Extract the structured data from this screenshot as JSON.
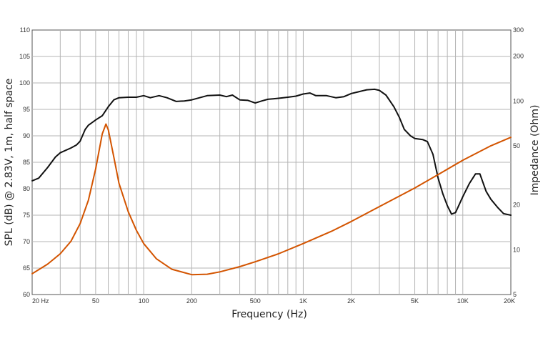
{
  "chart_data": {
    "type": "line",
    "title": "",
    "xlabel": "Frequency (Hz)",
    "ylabel": "SPL (dB) @ 2.83V, 1m, half space",
    "y2label": "Impedance (Ohm)",
    "xscale": "log",
    "xlim": [
      20,
      20000
    ],
    "ylim": [
      60,
      110
    ],
    "y2lim": [
      5,
      300
    ],
    "y2scale": "log",
    "grid": true,
    "x_ticks": [
      {
        "value": 20,
        "label": "20  Hz"
      },
      {
        "value": 50,
        "label": "50"
      },
      {
        "value": 100,
        "label": "100"
      },
      {
        "value": 200,
        "label": "200"
      },
      {
        "value": 500,
        "label": "500"
      },
      {
        "value": 1000,
        "label": "1K"
      },
      {
        "value": 2000,
        "label": "2K"
      },
      {
        "value": 5000,
        "label": "5K"
      },
      {
        "value": 10000,
        "label": "10K"
      },
      {
        "value": 20000,
        "label": "20K"
      }
    ],
    "y_ticks": [
      "110",
      "105",
      "100",
      "95",
      "90",
      "85",
      "80",
      "75",
      "70",
      "65",
      "60"
    ],
    "y2_ticks": [
      {
        "value": 300,
        "label": "300"
      },
      {
        "value": 200,
        "label": "200"
      },
      {
        "value": 100,
        "label": "100"
      },
      {
        "value": 50,
        "label": "50"
      },
      {
        "value": 20,
        "label": "20"
      },
      {
        "value": 10,
        "label": "10"
      },
      {
        "value": 5,
        "label": "5"
      }
    ],
    "series": [
      {
        "axis": "left",
        "color": "#111111",
        "points": [
          [
            20,
            81.5
          ],
          [
            22,
            82
          ],
          [
            25,
            84
          ],
          [
            28,
            86
          ],
          [
            30,
            86.8
          ],
          [
            35,
            87.7
          ],
          [
            38,
            88.3
          ],
          [
            40,
            89
          ],
          [
            43,
            91.2
          ],
          [
            45,
            92
          ],
          [
            50,
            93
          ],
          [
            55,
            93.8
          ],
          [
            60,
            95.5
          ],
          [
            65,
            96.8
          ],
          [
            70,
            97.2
          ],
          [
            80,
            97.3
          ],
          [
            90,
            97.3
          ],
          [
            100,
            97.6
          ],
          [
            110,
            97.2
          ],
          [
            125,
            97.6
          ],
          [
            140,
            97.2
          ],
          [
            160,
            96.5
          ],
          [
            180,
            96.6
          ],
          [
            200,
            96.8
          ],
          [
            250,
            97.6
          ],
          [
            300,
            97.7
          ],
          [
            330,
            97.4
          ],
          [
            360,
            97.7
          ],
          [
            400,
            96.8
          ],
          [
            450,
            96.7
          ],
          [
            500,
            96.2
          ],
          [
            550,
            96.6
          ],
          [
            600,
            96.9
          ],
          [
            700,
            97.1
          ],
          [
            800,
            97.3
          ],
          [
            900,
            97.5
          ],
          [
            1000,
            97.9
          ],
          [
            1100,
            98.1
          ],
          [
            1200,
            97.6
          ],
          [
            1400,
            97.6
          ],
          [
            1600,
            97.2
          ],
          [
            1800,
            97.4
          ],
          [
            2000,
            98.0
          ],
          [
            2200,
            98.3
          ],
          [
            2500,
            98.7
          ],
          [
            2800,
            98.8
          ],
          [
            3000,
            98.6
          ],
          [
            3300,
            97.7
          ],
          [
            3700,
            95.5
          ],
          [
            4000,
            93.5
          ],
          [
            4300,
            91.2
          ],
          [
            4700,
            90.0
          ],
          [
            5000,
            89.5
          ],
          [
            5600,
            89.3
          ],
          [
            6000,
            88.9
          ],
          [
            6500,
            86.5
          ],
          [
            7000,
            82
          ],
          [
            7500,
            79
          ],
          [
            8000,
            76.8
          ],
          [
            8500,
            75.2
          ],
          [
            9000,
            75.5
          ],
          [
            10000,
            78.5
          ],
          [
            11000,
            81
          ],
          [
            12000,
            82.8
          ],
          [
            12800,
            82.8
          ],
          [
            14000,
            79.5
          ],
          [
            15000,
            78
          ],
          [
            16500,
            76.5
          ],
          [
            18000,
            75.3
          ],
          [
            20000,
            75
          ]
        ]
      },
      {
        "axis": "right",
        "color": "#d35400",
        "points": [
          [
            20,
            6.9
          ],
          [
            25,
            8
          ],
          [
            30,
            9.4
          ],
          [
            35,
            11.4
          ],
          [
            40,
            15
          ],
          [
            45,
            21.5
          ],
          [
            50,
            35
          ],
          [
            55,
            60
          ],
          [
            58,
            70
          ],
          [
            60,
            64
          ],
          [
            65,
            42
          ],
          [
            70,
            28
          ],
          [
            80,
            18
          ],
          [
            90,
            13.5
          ],
          [
            100,
            11
          ],
          [
            120,
            8.7
          ],
          [
            150,
            7.4
          ],
          [
            200,
            6.8
          ],
          [
            250,
            6.85
          ],
          [
            300,
            7.1
          ],
          [
            400,
            7.7
          ],
          [
            500,
            8.3
          ],
          [
            700,
            9.4
          ],
          [
            1000,
            11.0
          ],
          [
            1500,
            13.3
          ],
          [
            2000,
            15.5
          ],
          [
            3000,
            19.5
          ],
          [
            5000,
            26
          ],
          [
            7000,
            32
          ],
          [
            10000,
            40
          ],
          [
            15000,
            50
          ],
          [
            20000,
            57
          ]
        ]
      }
    ]
  }
}
